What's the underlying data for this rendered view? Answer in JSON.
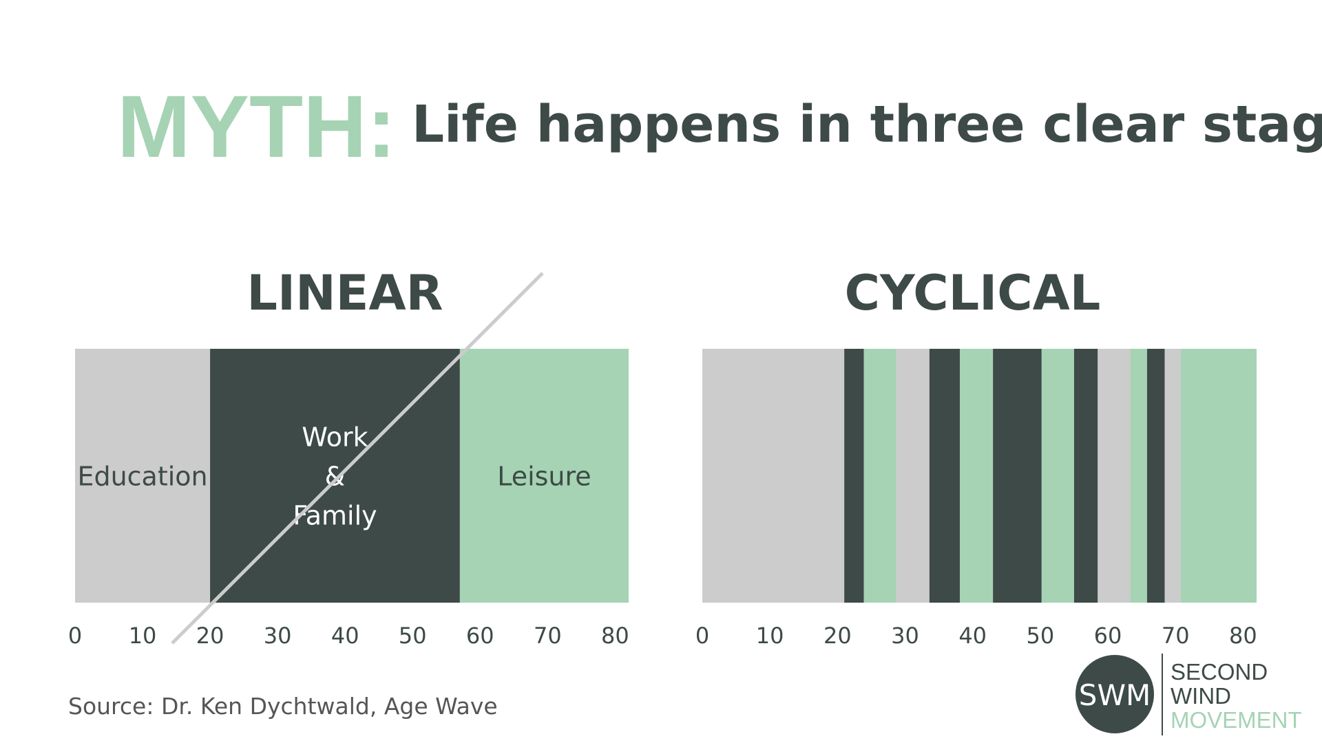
{
  "header": {
    "myth": "MYTH:",
    "statement": "Life happens in three clear stages"
  },
  "chart_data": [
    {
      "type": "stacked_bar",
      "title": "LINEAR",
      "xlim": [
        0,
        82
      ],
      "xticks": [
        0,
        10,
        20,
        30,
        40,
        50,
        60,
        70,
        80
      ],
      "segments": [
        {
          "value": 20,
          "color": "#cccccc",
          "label": [
            "Education"
          ]
        },
        {
          "value": 37,
          "color": "#3d4a48",
          "label": [
            "Work",
            "&",
            "Family"
          ]
        },
        {
          "value": 25,
          "color": "#a5d3b3",
          "label": [
            "Leisure"
          ]
        }
      ]
    },
    {
      "type": "stacked_bar",
      "title": "CYCLICAL",
      "xlim": [
        0,
        82
      ],
      "xticks": [
        0,
        10,
        20,
        30,
        40,
        50,
        60,
        70,
        80
      ],
      "segments": [
        {
          "value": 21,
          "color": "#cccccc"
        },
        {
          "value": 2.9,
          "color": "#3d4a48"
        },
        {
          "value": 4.8,
          "color": "#a5d3b3"
        },
        {
          "value": 4.9,
          "color": "#cccccc"
        },
        {
          "value": 4.5,
          "color": "#3d4a48"
        },
        {
          "value": 4.9,
          "color": "#a5d3b3"
        },
        {
          "value": 7.2,
          "color": "#3d4a48"
        },
        {
          "value": 4.8,
          "color": "#a5d3b3"
        },
        {
          "value": 3.5,
          "color": "#3d4a48"
        },
        {
          "value": 4.8,
          "color": "#cccccc"
        },
        {
          "value": 2.5,
          "color": "#a5d3b3"
        },
        {
          "value": 2.6,
          "color": "#3d4a48"
        },
        {
          "value": 2.4,
          "color": "#cccccc"
        },
        {
          "value": 11.2,
          "color": "#a5d3b3"
        }
      ]
    }
  ],
  "source": "Source: Dr. Ken Dychtwald, Age Wave",
  "logo": {
    "mark": "SWM",
    "lines": [
      "SECOND",
      "WIND",
      "MOVEMENT"
    ]
  }
}
